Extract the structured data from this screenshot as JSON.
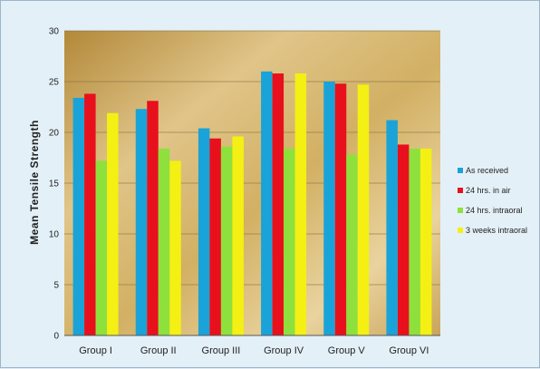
{
  "chart_data": {
    "type": "bar",
    "title": "",
    "xlabel": "",
    "ylabel": "Mean Tensile Strength",
    "ylim": [
      0,
      30
    ],
    "yticks": [
      0,
      5,
      10,
      15,
      20,
      25,
      30
    ],
    "grid": true,
    "legend": "right",
    "categories": [
      "Group I",
      "Group II",
      "Group III",
      "Group IV",
      "Group V",
      "Group VI"
    ],
    "series": [
      {
        "name": "As received",
        "color": "#1aa3d8",
        "values": [
          23.4,
          22.3,
          20.4,
          26.0,
          25.0,
          21.2
        ]
      },
      {
        "name": "24 hrs. in air",
        "color": "#e8101c",
        "values": [
          23.8,
          23.1,
          19.4,
          25.8,
          24.8,
          18.8
        ]
      },
      {
        "name": "24 hrs. intraoral",
        "color": "#8ee03c",
        "values": [
          17.2,
          18.4,
          18.6,
          18.4,
          17.8,
          18.4
        ]
      },
      {
        "name": "3 weeks intraoral",
        "color": "#f4f014",
        "values": [
          21.9,
          17.2,
          19.6,
          25.8,
          24.7,
          18.4
        ]
      }
    ]
  }
}
